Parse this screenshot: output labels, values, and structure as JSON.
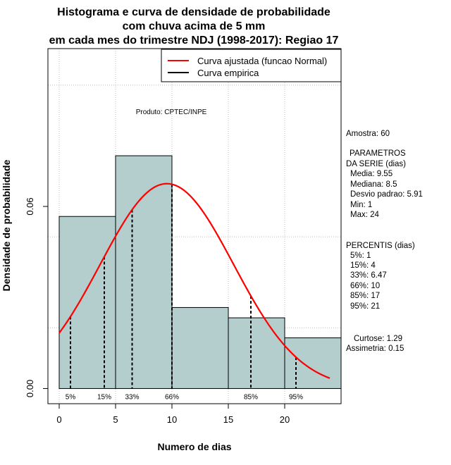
{
  "chart_data": {
    "type": "histogram",
    "title_lines": [
      "Histograma e curva de densidade de probabilidade",
      "com chuva acima de 5 mm",
      "em cada mes do trimestre NDJ (1998-2017): Regiao 17"
    ],
    "xlabel": "Numero de dias",
    "ylabel": "Densidade de probabilidade",
    "xlim": [
      -1,
      25
    ],
    "ylim": [
      -0.005,
      0.112
    ],
    "x_ticks": [
      0,
      5,
      10,
      15,
      20
    ],
    "y_ticks": [
      0.0,
      0.06
    ],
    "y_tick_labels": [
      "0.00",
      "0.06"
    ],
    "grid": true,
    "bins": [
      {
        "x0": 0,
        "x1": 5,
        "density": 0.0567
      },
      {
        "x0": 5,
        "x1": 10,
        "density": 0.0767
      },
      {
        "x0": 10,
        "x1": 15,
        "density": 0.0267
      },
      {
        "x0": 15,
        "x1": 20,
        "density": 0.0233
      },
      {
        "x0": 20,
        "x1": 25,
        "density": 0.0167
      }
    ],
    "normal_curve": {
      "mean": 9.55,
      "sd": 5.91,
      "x_from": 0,
      "x_to": 24
    },
    "percentile_lines": [
      {
        "label": "5%",
        "x": 1
      },
      {
        "label": "15%",
        "x": 4
      },
      {
        "label": "33%",
        "x": 6.47
      },
      {
        "label": "66%",
        "x": 10
      },
      {
        "label": "85%",
        "x": 17
      },
      {
        "label": "95%",
        "x": 21
      }
    ],
    "legend": {
      "position": "top-right",
      "entries": [
        {
          "label": "Curva ajustada (funcao Normal)",
          "color": "#ff0000"
        },
        {
          "label": "Curva empirica",
          "color": "#000000"
        }
      ]
    },
    "annotation": "Produto: CPTEC/INPE",
    "bar_color": "#b4cdcd",
    "curve_color": "#ff0000"
  },
  "side_panel": {
    "sample": "Amostra: 60",
    "params_header_1": "PARAMETROS",
    "params_header_2": "DA SERIE (dias)",
    "params": [
      "Media: 9.55",
      "Mediana: 8.5",
      "Desvio padrao: 5.91",
      "Min: 1",
      "Max: 24"
    ],
    "percentis_header": "PERCENTIS (dias)",
    "percentis": [
      "5%: 1",
      "15%: 4",
      "33%: 6.47",
      "66%: 10",
      "85%: 17",
      "95%: 21"
    ],
    "curtose": "Curtose: 1.29",
    "assimetria": "Assimetria: 0.15"
  }
}
